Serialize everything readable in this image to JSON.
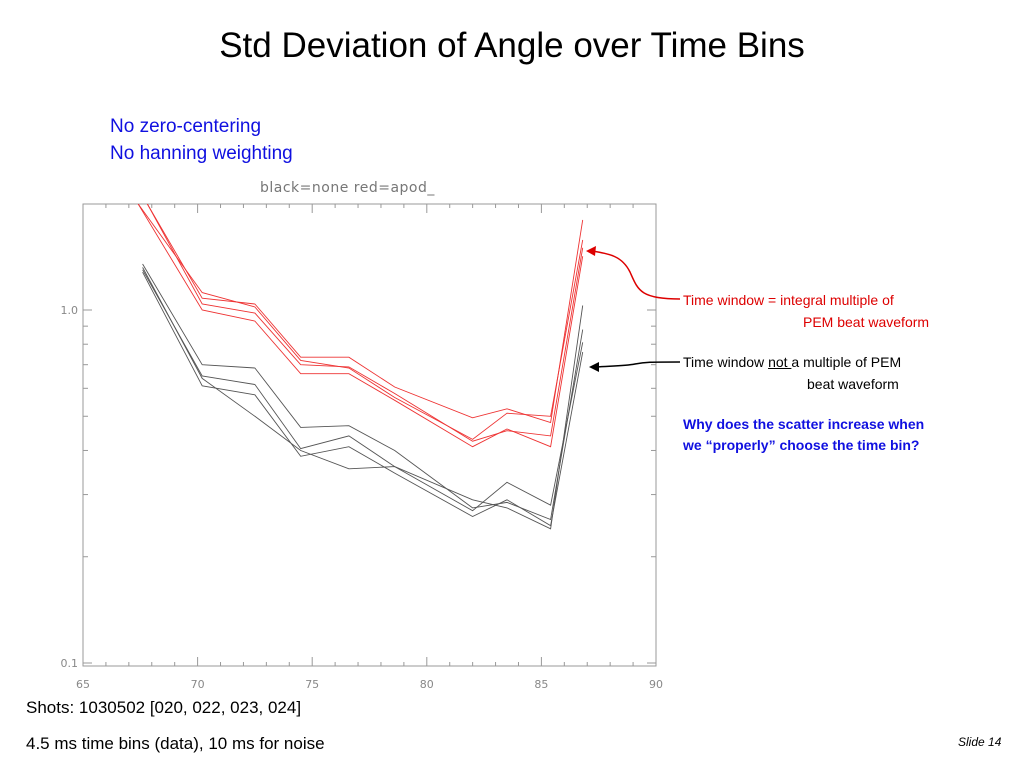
{
  "slide": {
    "title": "Std Deviation of Angle over Time Bins",
    "notes": [
      "No zero-centering",
      "No hanning weighting"
    ],
    "footer_line1": "Shots:  1030502 [020, 022, 023, 024]",
    "footer_line2": "4.5 ms time bins (data), 10 ms for noise",
    "slide_number": "Slide 14"
  },
  "annotations": {
    "red_line1": "Time window = integral multiple of",
    "red_line2": "PEM beat waveform",
    "black_line1_pre": "Time window ",
    "black_line1_not": "not ",
    "black_line1_post": "a multiple of PEM",
    "black_line2": "beat waveform",
    "question_line1": "Why does the scatter increase when",
    "question_line2": "we “properly” choose the time bin?"
  },
  "colors": {
    "red_series": "#ee3333",
    "black_series": "#555555",
    "axis": "#999999",
    "note_blue": "#1010e0",
    "annotation_red": "#dd0000"
  },
  "chart_data": {
    "type": "line",
    "title": "black=none   red=apod_",
    "xlabel": "",
    "ylabel": "",
    "xlim": [
      65,
      90
    ],
    "ylim": [
      0.1,
      2.0
    ],
    "yscale": "log",
    "xticks": [
      65,
      70,
      75,
      80,
      85,
      90
    ],
    "yticks": [
      0.1,
      1.0
    ],
    "xtick_labels": [
      "65",
      "70",
      "75",
      "80",
      "85",
      "90"
    ],
    "ytick_labels": [
      "0.1",
      "1.0"
    ],
    "grid": false,
    "series": [
      {
        "color": "red",
        "x": [
          67.8,
          70.2,
          72.5,
          74.5,
          76.6,
          78.6,
          82.0,
          83.5,
          85.4,
          86.8
        ],
        "y": [
          2.0,
          1.08,
          1.04,
          0.735,
          0.735,
          0.605,
          0.495,
          0.525,
          0.48,
          1.8
        ]
      },
      {
        "color": "red",
        "x": [
          67.8,
          70.2,
          72.5,
          74.5,
          76.6,
          78.6,
          82.0,
          83.5,
          85.4,
          86.8
        ],
        "y": [
          2.0,
          1.04,
          0.98,
          0.7,
          0.69,
          0.58,
          0.425,
          0.455,
          0.44,
          1.5
        ]
      },
      {
        "color": "red",
        "x": [
          67.4,
          70.2,
          72.5,
          74.5,
          76.6,
          78.6,
          82.0,
          83.5,
          85.4,
          86.8
        ],
        "y": [
          2.0,
          1.0,
          0.93,
          0.66,
          0.66,
          0.555,
          0.41,
          0.46,
          0.41,
          1.42
        ]
      },
      {
        "color": "red",
        "x": [
          67.4,
          70.2,
          72.5,
          74.5,
          76.6,
          78.6,
          82.0,
          83.5,
          85.4,
          86.8
        ],
        "y": [
          2.0,
          1.12,
          1.02,
          0.72,
          0.685,
          0.565,
          0.43,
          0.51,
          0.5,
          1.58
        ]
      },
      {
        "color": "black",
        "x": [
          67.6,
          70.2,
          72.5,
          74.5,
          76.6,
          78.6,
          82.0,
          83.5,
          85.4,
          86.8
        ],
        "y": [
          1.35,
          0.7,
          0.685,
          0.465,
          0.47,
          0.4,
          0.275,
          0.285,
          0.255,
          0.88
        ]
      },
      {
        "color": "black",
        "x": [
          67.6,
          70.2,
          72.5,
          74.5,
          76.6,
          78.6,
          82.0,
          83.5,
          85.4,
          86.8
        ],
        "y": [
          1.3,
          0.65,
          0.615,
          0.405,
          0.44,
          0.36,
          0.27,
          0.325,
          0.28,
          0.81
        ]
      },
      {
        "color": "black",
        "x": [
          67.6,
          70.2,
          72.5,
          74.5,
          76.6,
          78.6,
          82.0,
          83.5,
          85.4,
          86.8
        ],
        "y": [
          1.28,
          0.61,
          0.575,
          0.385,
          0.41,
          0.345,
          0.26,
          0.29,
          0.245,
          0.76
        ]
      },
      {
        "color": "black",
        "x": [
          67.6,
          70.2,
          72.5,
          74.5,
          76.6,
          78.6,
          82.0,
          83.5,
          85.4,
          86.8
        ],
        "y": [
          1.32,
          0.64,
          0.5,
          0.4,
          0.355,
          0.36,
          0.29,
          0.275,
          0.24,
          1.03
        ]
      }
    ]
  }
}
